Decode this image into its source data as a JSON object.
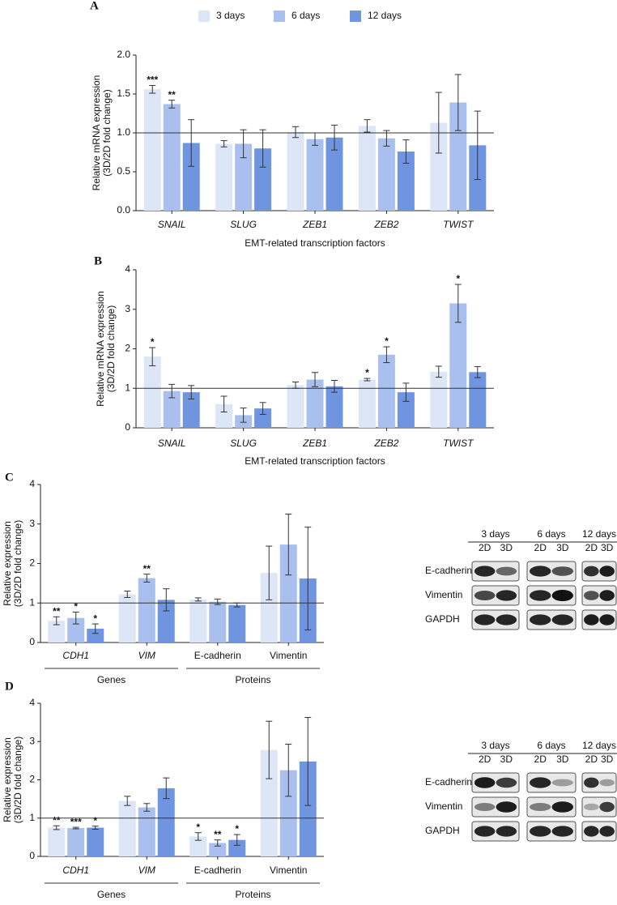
{
  "chart_data": [
    {
      "type": "bar",
      "panel": "A",
      "ylabel": [
        "Relative mRNA expression",
        "(3D/2D fold change)"
      ],
      "xlabel": "EMT-related transcription factors",
      "categories": [
        "SNAIL",
        "SLUG",
        "ZEB1",
        "ZEB2",
        "TWIST"
      ],
      "series": [
        {
          "name": "3 days",
          "color": "#dce6f7",
          "values": [
            1.56,
            0.86,
            1.01,
            1.09,
            1.13
          ],
          "errors": [
            0.05,
            0.04,
            0.07,
            0.08,
            0.39
          ],
          "sig": [
            "***",
            null,
            null,
            null,
            null
          ]
        },
        {
          "name": "6 days",
          "color": "#a9c0ee",
          "values": [
            1.37,
            0.86,
            0.92,
            0.93,
            1.39
          ],
          "errors": [
            0.05,
            0.18,
            0.08,
            0.1,
            0.36
          ],
          "sig": [
            "**",
            null,
            null,
            null,
            null
          ]
        },
        {
          "name": "12 days",
          "color": "#6f94e0",
          "values": [
            0.87,
            0.8,
            0.94,
            0.76,
            0.84
          ],
          "errors": [
            0.3,
            0.24,
            0.16,
            0.15,
            0.44
          ],
          "sig": [
            null,
            null,
            null,
            null,
            null
          ]
        }
      ],
      "ylim": [
        0,
        2
      ],
      "yticks": [
        {
          "value": 0,
          "label": "0.0"
        },
        0.5,
        {
          "value": 1,
          "label": "1.0"
        },
        1.5,
        {
          "value": 2,
          "label": "2.0"
        }
      ],
      "hline": 1
    },
    {
      "type": "bar",
      "panel": "B",
      "ylabel": [
        "Relative mRNA expression",
        "(3D/2D fold change)"
      ],
      "xlabel": "EMT-related transcription factors",
      "categories": [
        "SNAIL",
        "SLUG",
        "ZEB1",
        "ZEB2",
        "TWIST"
      ],
      "series": [
        {
          "color": "#dce6f7",
          "values": [
            1.8,
            0.6,
            1.08,
            1.22,
            1.42
          ],
          "errors": [
            0.23,
            0.2,
            0.08,
            0.03,
            0.14
          ],
          "sig": [
            "*",
            null,
            null,
            "*",
            null
          ]
        },
        {
          "color": "#a9c0ee",
          "values": [
            0.93,
            0.32,
            1.22,
            1.85,
            3.15
          ],
          "errors": [
            0.17,
            0.18,
            0.18,
            0.2,
            0.48
          ],
          "sig": [
            null,
            null,
            null,
            "*",
            "*"
          ]
        },
        {
          "color": "#6f94e0",
          "values": [
            0.9,
            0.49,
            1.05,
            0.9,
            1.41
          ],
          "errors": [
            0.17,
            0.15,
            0.15,
            0.23,
            0.14
          ],
          "sig": [
            null,
            null,
            null,
            null,
            null
          ]
        }
      ],
      "ylim": [
        0,
        4
      ],
      "yticks": [
        0,
        1,
        2,
        3,
        4
      ],
      "hline": 1
    },
    {
      "type": "bar",
      "panel": "C",
      "ylabel": [
        "Relative expression",
        "(3D/2D fold change)"
      ],
      "categories": [
        "CDH1",
        "VIM",
        "E-cadherin",
        "Vimentin"
      ],
      "groups": [
        "Genes",
        "Proteins"
      ],
      "series": [
        {
          "color": "#dce6f7",
          "values": [
            0.55,
            1.22,
            1.09,
            1.76
          ],
          "errors": [
            0.1,
            0.08,
            0.04,
            0.68
          ],
          "sig": [
            "**",
            null,
            null,
            null
          ]
        },
        {
          "color": "#a9c0ee",
          "values": [
            0.62,
            1.63,
            1.03,
            2.48
          ],
          "errors": [
            0.15,
            0.1,
            0.07,
            0.77
          ],
          "sig": [
            "*",
            "**",
            null,
            null
          ]
        },
        {
          "color": "#6f94e0",
          "values": [
            0.35,
            1.08,
            0.95,
            1.62
          ],
          "errors": [
            0.12,
            0.28,
            0.05,
            1.3
          ],
          "sig": [
            "*",
            null,
            null,
            null
          ]
        }
      ],
      "ylim": [
        0,
        4
      ],
      "yticks": [
        0,
        1,
        2,
        3,
        4
      ],
      "hline": 1
    },
    {
      "type": "bar",
      "panel": "D",
      "ylabel": [
        "Relative expression",
        "(3D/2D fold change)"
      ],
      "categories": [
        "CDH1",
        "VIM",
        "E-cadherin",
        "Vimentin"
      ],
      "groups": [
        "Genes",
        "Proteins"
      ],
      "series": [
        {
          "color": "#dce6f7",
          "values": [
            0.75,
            1.45,
            0.52,
            2.78
          ],
          "errors": [
            0.05,
            0.12,
            0.1,
            0.75
          ],
          "sig": [
            "**",
            null,
            "*",
            null
          ]
        },
        {
          "color": "#a9c0ee",
          "values": [
            0.74,
            1.28,
            0.35,
            2.25
          ],
          "errors": [
            0.02,
            0.1,
            0.08,
            0.68
          ],
          "sig": [
            "***",
            null,
            "**",
            null
          ]
        },
        {
          "color": "#6f94e0",
          "values": [
            0.75,
            1.78,
            0.43,
            2.48
          ],
          "errors": [
            0.04,
            0.27,
            0.14,
            1.15
          ],
          "sig": [
            "*",
            null,
            "*",
            null
          ]
        }
      ],
      "ylim": [
        0,
        4
      ],
      "yticks": [
        0,
        1,
        2,
        3,
        4
      ],
      "hline": 1
    }
  ],
  "blots": [
    {
      "periods": [
        "3 days",
        "6 days",
        "12 days"
      ],
      "lanes": [
        "2D",
        "3D",
        "2D",
        "3D",
        "2D",
        "3D"
      ],
      "rows": [
        "E-cadherin",
        "Vimentin",
        "GAPDH"
      ]
    },
    {
      "periods": [
        "3 days",
        "6 days",
        "12 days"
      ],
      "lanes": [
        "2D",
        "3D",
        "2D",
        "3D",
        "2D",
        "3D"
      ],
      "rows": [
        "E-cadherin",
        "Vimentin",
        "GAPDH"
      ]
    }
  ]
}
